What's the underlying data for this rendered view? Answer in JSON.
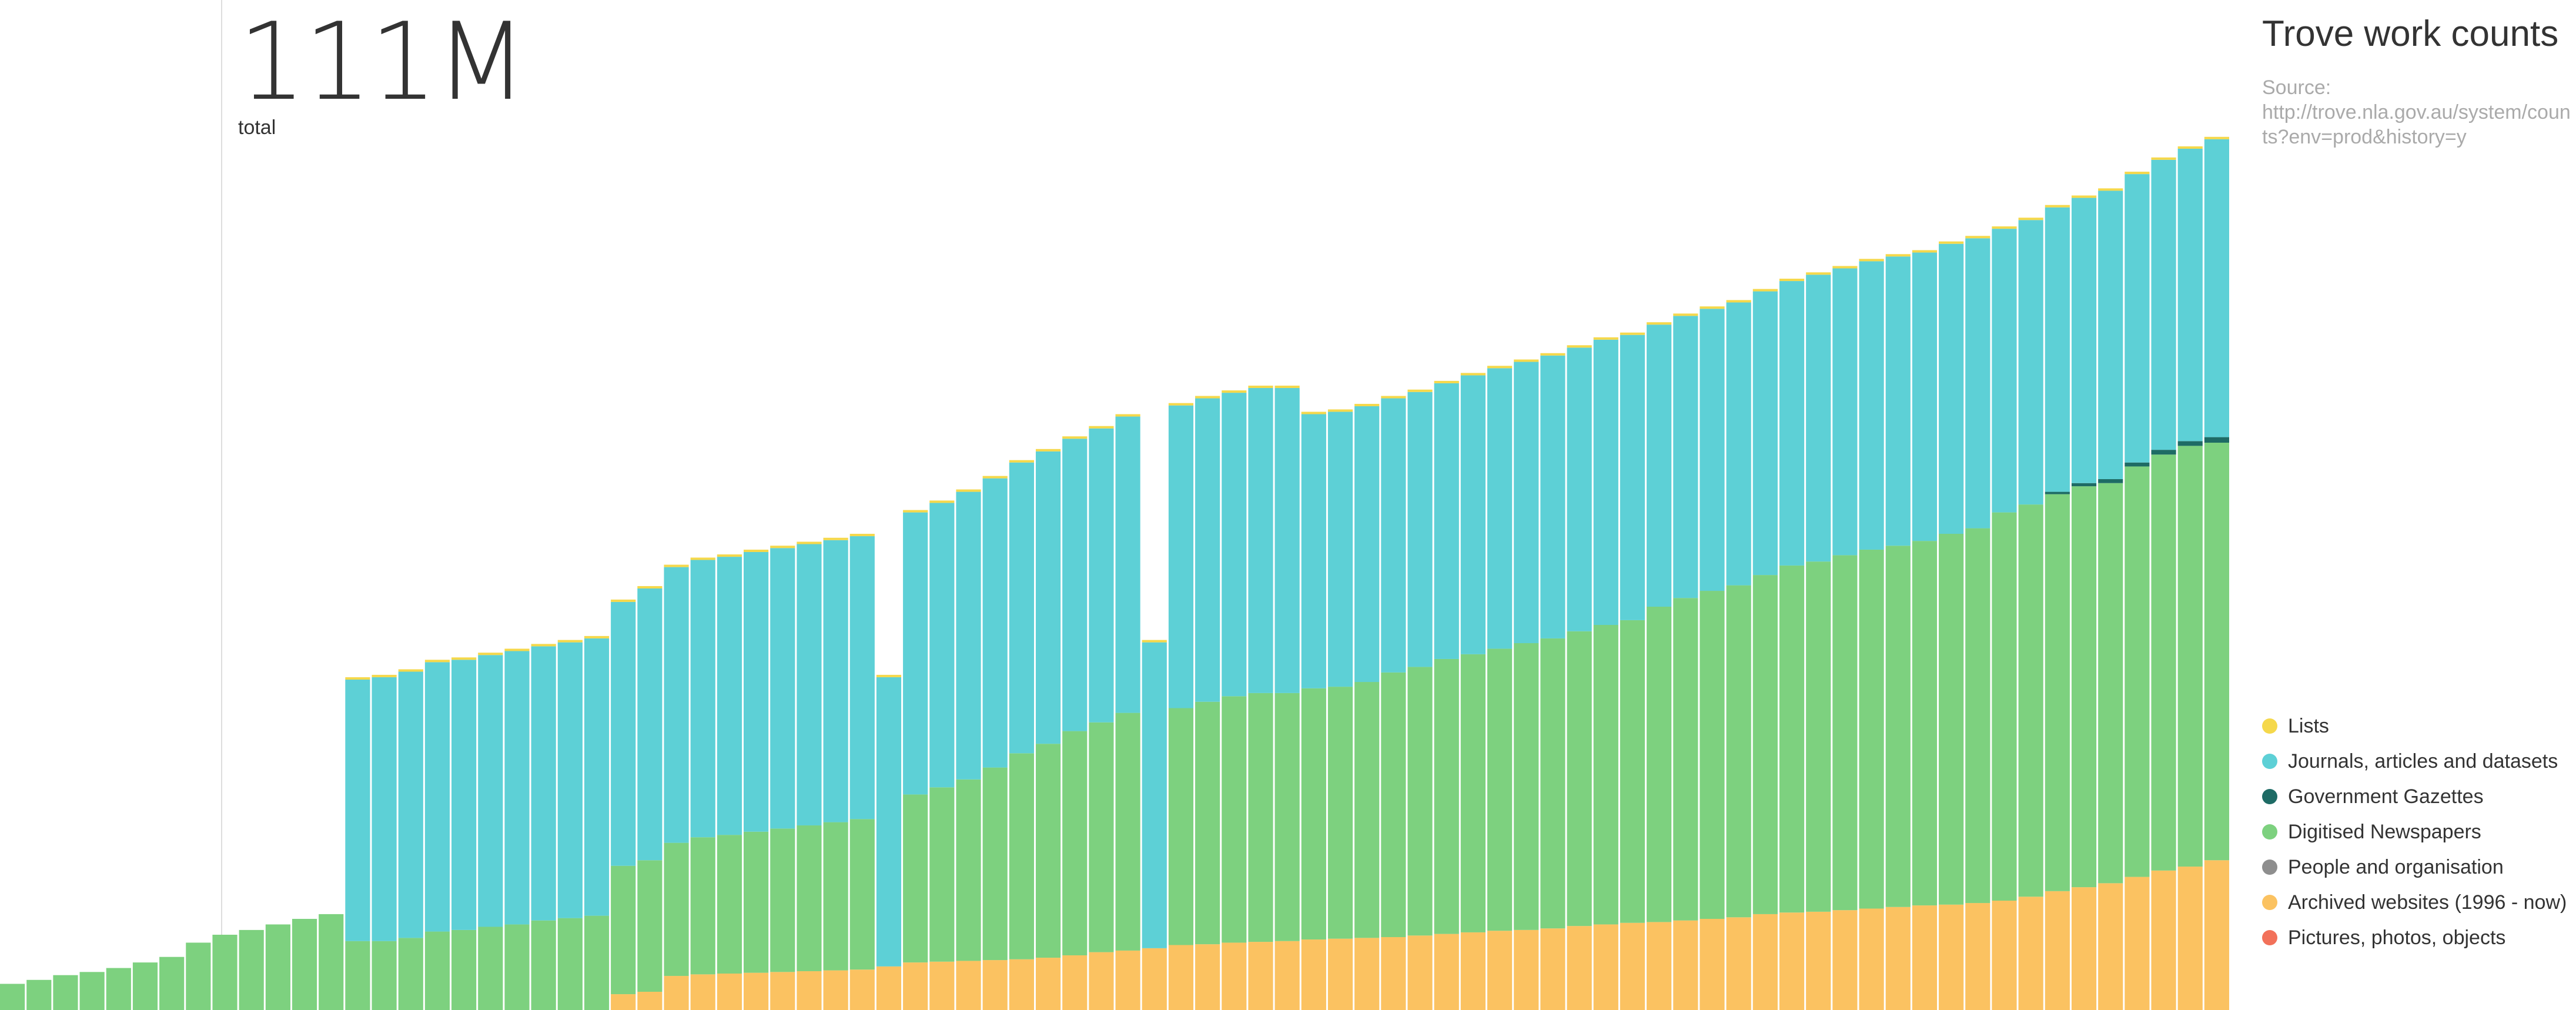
{
  "summary": {
    "total_value": "111M",
    "total_label": "total"
  },
  "side": {
    "title": "Trove work counts",
    "source_prefix": "Source:",
    "source_url": "http://trove.nla.gov.au/system/counts?env=prod&history=y"
  },
  "legend": [
    {
      "label": "Lists",
      "color": "#f5d84b"
    },
    {
      "label": "Journals, articles and datasets",
      "color": "#5dd0d6"
    },
    {
      "label": "Government Gazettes",
      "color": "#1e6b65"
    },
    {
      "label": "Digitised Newspapers",
      "color": "#7dd17f"
    },
    {
      "label": "People and organisation",
      "color": "#8e8e8e"
    },
    {
      "label": "Archived websites (1996 - now)",
      "color": "#fbc261"
    },
    {
      "label": "Pictures, photos, objects",
      "color": "#f2715a"
    }
  ],
  "chart_data": {
    "type": "bar",
    "stacked": true,
    "unit": "millions of works (estimated)",
    "ylim": [
      0,
      111
    ],
    "series": [
      {
        "name": "Archived websites (1996 - now)",
        "color": "#fbc261",
        "values": [
          0,
          0,
          0,
          0,
          0,
          0,
          0,
          0,
          0,
          0,
          0,
          0,
          0,
          0,
          0,
          0,
          0,
          0,
          0,
          0,
          0,
          0,
          0,
          2.0,
          2.3,
          4.3,
          4.5,
          4.6,
          4.7,
          4.8,
          4.9,
          5.0,
          5.1,
          5.5,
          6.0,
          6.1,
          6.2,
          6.3,
          6.4,
          6.6,
          6.9,
          7.3,
          7.5,
          7.8,
          8.2,
          8.3,
          8.5,
          8.6,
          8.7,
          8.9,
          9.0,
          9.1,
          9.2,
          9.4,
          9.6,
          9.8,
          10.0,
          10.1,
          10.3,
          10.6,
          10.8,
          11.0,
          11.1,
          11.3,
          11.5,
          11.7,
          12.1,
          12.3,
          12.4,
          12.6,
          12.8,
          13.0,
          13.2,
          13.3,
          13.5,
          13.8,
          14.3,
          15.0,
          15.5,
          16.0,
          16.8,
          17.6,
          18.1,
          18.9
        ]
      },
      {
        "name": "Digitised Newspapers",
        "color": "#7dd17f",
        "values": [
          3.3,
          3.8,
          4.4,
          4.8,
          5.3,
          6.0,
          6.7,
          8.5,
          9.5,
          10.1,
          10.8,
          11.5,
          12.1,
          8.7,
          8.7,
          9.1,
          9.9,
          10.1,
          10.5,
          10.8,
          11.3,
          11.6,
          11.9,
          16.2,
          16.6,
          16.8,
          17.3,
          17.5,
          17.8,
          18.1,
          18.4,
          18.7,
          19.0,
          0,
          21.2,
          22.0,
          22.9,
          24.3,
          26.0,
          27.0,
          28.3,
          29.0,
          30.0,
          0,
          29.9,
          30.6,
          31.1,
          31.4,
          31.3,
          31.7,
          31.8,
          32.3,
          33.4,
          33.9,
          34.7,
          35.1,
          35.6,
          36.2,
          36.6,
          37.2,
          37.8,
          38.2,
          39.8,
          40.7,
          41.4,
          41.9,
          42.8,
          43.8,
          44.2,
          44.8,
          45.3,
          45.6,
          46.0,
          46.8,
          47.3,
          49.0,
          49.5,
          50.1,
          50.6,
          50.5,
          51.8,
          52.5,
          53.1,
          52.7
        ]
      },
      {
        "name": "Government Gazettes",
        "color": "#1e6b65",
        "values": [
          0,
          0,
          0,
          0,
          0,
          0,
          0,
          0,
          0,
          0,
          0,
          0,
          0,
          0,
          0,
          0,
          0,
          0,
          0,
          0,
          0,
          0,
          0,
          0,
          0,
          0,
          0,
          0,
          0,
          0,
          0,
          0,
          0,
          0,
          0,
          0,
          0,
          0,
          0,
          0,
          0,
          0,
          0,
          0,
          0,
          0,
          0,
          0,
          0,
          0,
          0,
          0,
          0,
          0,
          0,
          0,
          0,
          0,
          0,
          0,
          0,
          0,
          0,
          0,
          0,
          0,
          0,
          0,
          0,
          0,
          0,
          0,
          0,
          0,
          0,
          0,
          0,
          0.3,
          0.4,
          0.5,
          0.5,
          0.6,
          0.6,
          0.7
        ]
      },
      {
        "name": "Journals, articles and datasets",
        "color": "#5dd0d6",
        "values": [
          0,
          0,
          0,
          0,
          0,
          0,
          0,
          0,
          0,
          0,
          0,
          0,
          0,
          33.0,
          33.3,
          33.6,
          34.0,
          34.1,
          34.3,
          34.5,
          34.6,
          34.8,
          35.0,
          33.3,
          34.3,
          34.8,
          35.0,
          35.1,
          35.3,
          35.4,
          35.5,
          35.6,
          35.7,
          36.5,
          35.6,
          35.9,
          36.3,
          36.5,
          36.7,
          36.9,
          36.9,
          37.1,
          37.4,
          38.6,
          38.2,
          38.3,
          38.3,
          38.5,
          38.5,
          34.6,
          34.7,
          34.8,
          34.6,
          34.7,
          34.8,
          35.2,
          35.4,
          35.5,
          35.7,
          35.8,
          36.0,
          36.0,
          35.6,
          35.6,
          35.6,
          35.7,
          35.8,
          35.9,
          36.2,
          36.2,
          36.4,
          36.5,
          36.4,
          36.6,
          36.6,
          35.8,
          35.9,
          35.9,
          36.0,
          36.4,
          36.4,
          36.6,
          36.9,
          37.6
        ]
      },
      {
        "name": "Lists",
        "color": "#f5d84b",
        "values": [
          0,
          0,
          0,
          0,
          0,
          0,
          0,
          0,
          0,
          0,
          0,
          0,
          0,
          0.3,
          0.3,
          0.3,
          0.3,
          0.3,
          0.3,
          0.3,
          0.3,
          0.3,
          0.3,
          0.3,
          0.3,
          0.3,
          0.3,
          0.3,
          0.3,
          0.3,
          0.3,
          0.3,
          0.3,
          0.3,
          0.3,
          0.3,
          0.3,
          0.3,
          0.3,
          0.3,
          0.3,
          0.3,
          0.3,
          0.3,
          0.3,
          0.3,
          0.3,
          0.3,
          0.3,
          0.3,
          0.3,
          0.3,
          0.3,
          0.3,
          0.3,
          0.3,
          0.3,
          0.3,
          0.3,
          0.3,
          0.3,
          0.3,
          0.3,
          0.3,
          0.3,
          0.3,
          0.3,
          0.3,
          0.3,
          0.3,
          0.3,
          0.3,
          0.3,
          0.3,
          0.3,
          0.3,
          0.3,
          0.3,
          0.3,
          0.3,
          0.3,
          0.3,
          0.3,
          0.3
        ]
      }
    ]
  }
}
